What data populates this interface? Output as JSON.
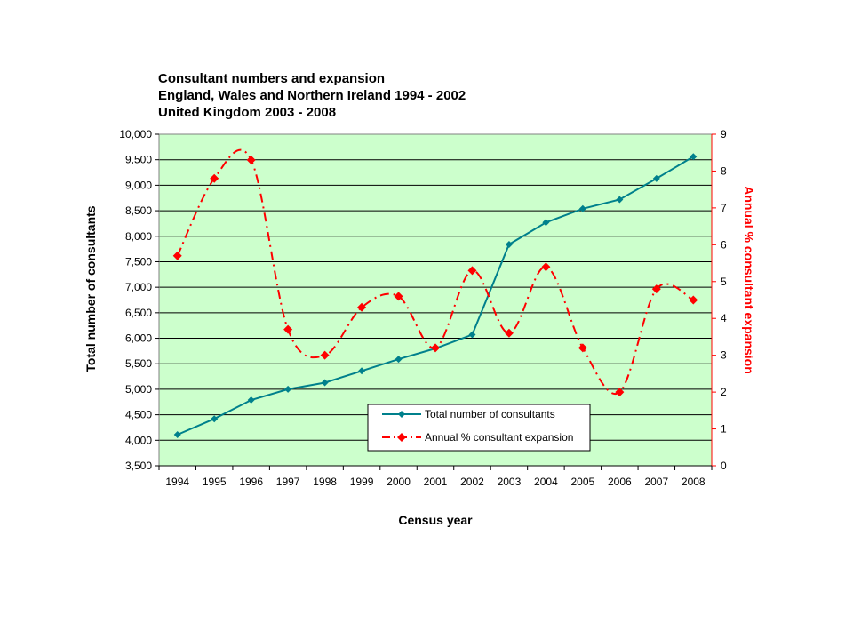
{
  "chart_data": {
    "type": "line",
    "title_lines": [
      "Consultant numbers and expansion",
      "England, Wales and Northern Ireland 1994 - 2002",
      "United Kingdom 2003 - 2008"
    ],
    "xlabel": "Census year",
    "ylabel": "Total number of consultants",
    "y2label": "Annual % consultant expansion",
    "categories": [
      "1994",
      "1995",
      "1996",
      "1997",
      "1998",
      "1999",
      "2000",
      "2001",
      "2002",
      "2003",
      "2004",
      "2005",
      "2006",
      "2007",
      "2008"
    ],
    "ylim": [
      3500,
      10000
    ],
    "y_ticks": [
      3500,
      4000,
      4500,
      5000,
      5500,
      6000,
      6500,
      7000,
      7500,
      8000,
      8500,
      9000,
      9500,
      10000
    ],
    "y_tick_labels": [
      "3,500",
      "4,000",
      "4,500",
      "5,000",
      "5,500",
      "6,000",
      "6,500",
      "7,000",
      "7,500",
      "8,000",
      "8,500",
      "9,000",
      "9,500",
      "10,000"
    ],
    "y2lim": [
      0,
      9
    ],
    "y2_ticks": [
      0,
      1,
      2,
      3,
      4,
      5,
      6,
      7,
      8,
      9
    ],
    "y2_tick_labels": [
      "0",
      "1",
      "2",
      "3",
      "4",
      "5",
      "6",
      "7",
      "8",
      "9"
    ],
    "grid": true,
    "legend_position": "bottom-right",
    "plot_background": "#ccffcc",
    "series": [
      {
        "name": "Total number of consultants",
        "axis": "left",
        "color": "#00808c",
        "line_style": "solid",
        "marker": "diamond",
        "values": [
          4110,
          4420,
          4790,
          5000,
          5130,
          5360,
          5590,
          5800,
          6070,
          7840,
          8270,
          8540,
          8720,
          9130,
          9560
        ]
      },
      {
        "name": "Annual % consultant expansion",
        "axis": "right",
        "color": "#ff0000",
        "line_style": "dash-dot",
        "marker": "diamond",
        "values": [
          5.7,
          7.8,
          8.3,
          3.7,
          3.0,
          4.3,
          4.6,
          3.2,
          5.3,
          3.6,
          5.4,
          3.2,
          2.0,
          4.8,
          4.5
        ]
      }
    ]
  }
}
